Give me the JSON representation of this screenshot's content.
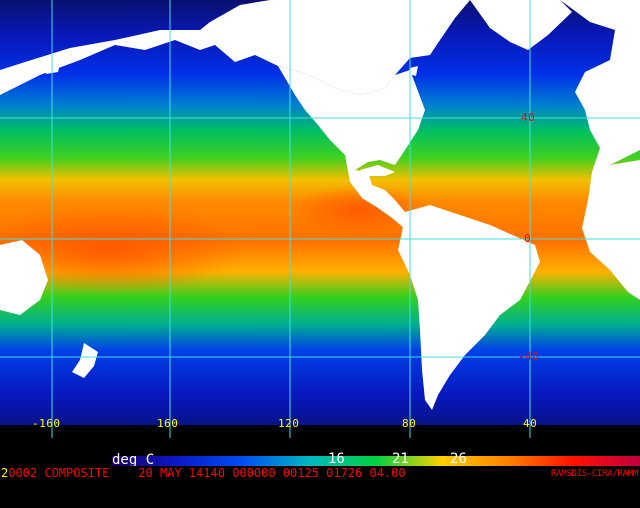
{
  "map": {
    "projection": "cylindrical",
    "variable": "sea surface temperature",
    "lat_ticks": [
      "40",
      "0",
      "-40"
    ],
    "lon_ticks": [
      "-160",
      "160",
      "120",
      "80",
      "40"
    ],
    "colors": {
      "grid": "#40e0e0",
      "land": "#ffffff",
      "lat_label": "#ff0000",
      "lon_label": "#ffff00"
    }
  },
  "colorbar": {
    "unit": "deg C",
    "ticks": [
      "16",
      "21",
      "26"
    ],
    "stops": [
      "#1a0060",
      "#0a18c8",
      "#0050f0",
      "#00b8c0",
      "#00d040",
      "#ffd000",
      "#ff8000",
      "#ff1000",
      "#c00040"
    ]
  },
  "footer": {
    "lead": "2",
    "text": "0002 COMPOSITE    20 MAY 14140 000000 00125 01726 04.00",
    "credit": "RAMSDIS-CIRA/RAMM"
  }
}
